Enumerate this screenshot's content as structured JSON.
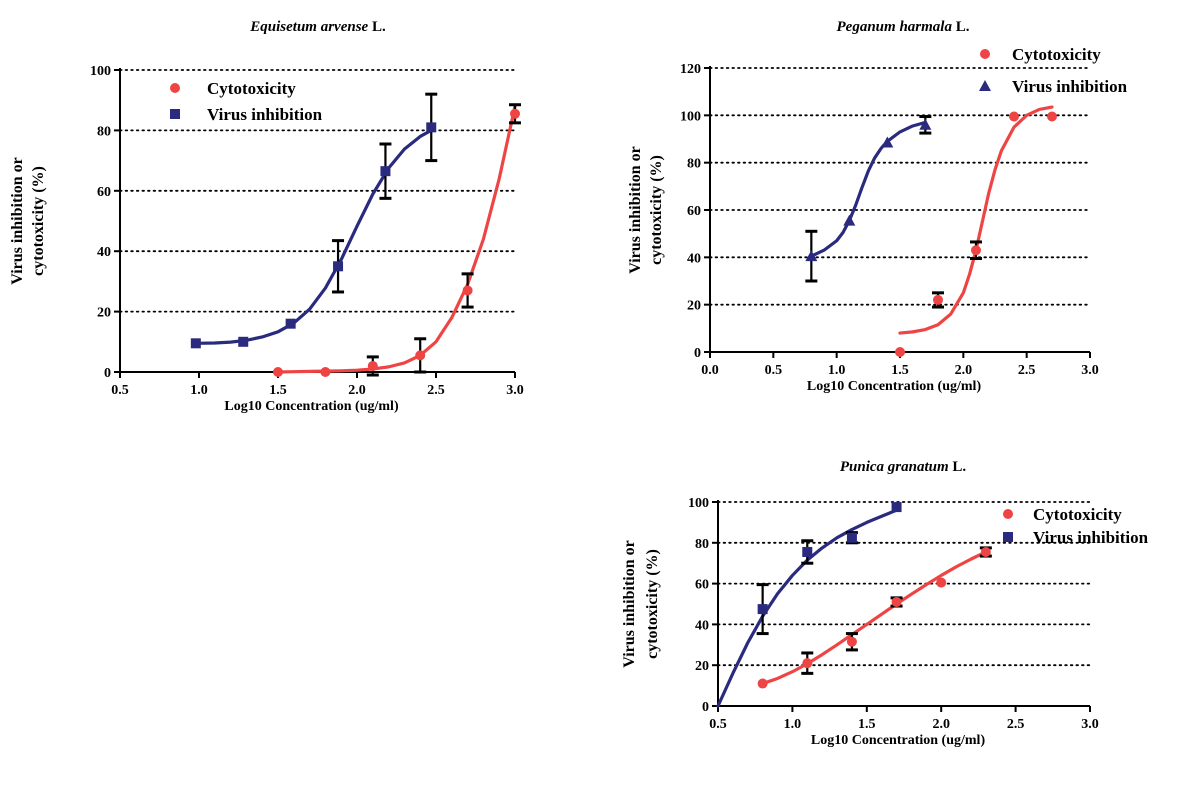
{
  "colors": {
    "cytotoxicity": "#ef4444",
    "virus_inhibition": "#2a2a7f",
    "axis": "#000000",
    "error_bar": "#000000"
  },
  "chart_data": [
    {
      "type": "scatter",
      "title_italic": "Equisetum arvense",
      "title_plain": " L.",
      "xlabel": "Log10 Concentration (ug/ml)",
      "ylabel_lines": [
        "Virus inhibition or",
        "cytotoxicity (%)"
      ],
      "xlim": [
        0.5,
        3.0
      ],
      "ylim": [
        0,
        100
      ],
      "xticks": [
        0.5,
        1.0,
        1.5,
        2.0,
        2.5,
        3.0
      ],
      "xticklabels": [
        "0.5",
        "1.0",
        "1.5",
        "2.0",
        "2.5",
        "3.0"
      ],
      "yticks": [
        0,
        20,
        40,
        60,
        80,
        100
      ],
      "yticklabels": [
        "0",
        "20",
        "40",
        "60",
        "80",
        "100"
      ],
      "grid": "horizontal dotted",
      "legend_position": "top-left",
      "series": [
        {
          "name": "Cytotoxicity",
          "marker": "circle",
          "color": "#ef4444",
          "x": [
            1.5,
            1.8,
            2.1,
            2.4,
            2.7,
            3.0
          ],
          "y": [
            0,
            0,
            2,
            5.5,
            27,
            85.5
          ],
          "err": [
            0,
            0,
            3,
            5.5,
            5.5,
            3
          ],
          "curve_x": [
            1.5,
            1.6,
            1.7,
            1.8,
            1.9,
            2.0,
            2.1,
            2.2,
            2.3,
            2.4,
            2.5,
            2.6,
            2.7,
            2.8,
            2.9,
            3.0
          ],
          "curve_y": [
            0,
            0.1,
            0.2,
            0.3,
            0.4,
            0.6,
            1,
            1.7,
            3,
            5.5,
            10,
            18,
            29,
            44,
            64,
            88
          ]
        },
        {
          "name": "Virus inhibition",
          "marker": "square",
          "color": "#2a2a7f",
          "x": [
            0.98,
            1.28,
            1.58,
            1.88,
            2.18,
            2.47
          ],
          "y": [
            9.5,
            10,
            16,
            35,
            66.5,
            81
          ],
          "err": [
            0,
            0,
            0,
            8.5,
            9,
            11
          ],
          "curve_x": [
            0.98,
            1.1,
            1.2,
            1.3,
            1.4,
            1.5,
            1.6,
            1.7,
            1.8,
            1.9,
            2.0,
            2.1,
            2.2,
            2.3,
            2.4,
            2.47
          ],
          "curve_y": [
            9.5,
            9.6,
            9.9,
            10.5,
            11.6,
            13.3,
            16.2,
            20.8,
            27.8,
            37.2,
            48.3,
            58.9,
            67.5,
            73.8,
            78,
            80
          ]
        }
      ]
    },
    {
      "type": "scatter",
      "title_italic": "Peganum harmala",
      "title_plain": " L.",
      "xlabel": "Log10 Concentration (ug/ml)",
      "ylabel_lines": [
        "Virus inhibition or",
        "cytotoxicity (%)"
      ],
      "xlim": [
        0.0,
        3.0
      ],
      "ylim": [
        0,
        120
      ],
      "xticks": [
        0.0,
        0.5,
        1.0,
        1.5,
        2.0,
        2.5,
        3.0
      ],
      "xticklabels": [
        "0.0",
        "0.5",
        "1.0",
        "1.5",
        "2.0",
        "2.5",
        "3.0"
      ],
      "yticks": [
        0,
        20,
        40,
        60,
        80,
        100,
        120
      ],
      "yticklabels": [
        "0",
        "20",
        "40",
        "60",
        "80",
        "100",
        "120"
      ],
      "grid": "horizontal dotted",
      "legend_position": "top-right",
      "series": [
        {
          "name": "Cytotoxicity",
          "marker": "circle",
          "color": "#ef4444",
          "x": [
            1.5,
            1.8,
            2.1,
            2.4,
            2.7
          ],
          "y": [
            0,
            22,
            43,
            99.5,
            99.5
          ],
          "err": [
            0,
            3,
            3.5,
            0,
            0
          ],
          "curve_x": [
            1.5,
            1.6,
            1.7,
            1.8,
            1.9,
            2.0,
            2.05,
            2.1,
            2.15,
            2.2,
            2.25,
            2.3,
            2.4,
            2.5,
            2.6,
            2.7
          ],
          "curve_y": [
            8,
            8.5,
            9.5,
            11.5,
            16,
            25,
            33,
            43,
            55,
            67,
            77,
            85,
            95,
            100,
            102.5,
            103.5
          ]
        },
        {
          "name": "Virus inhibition",
          "marker": "triangle",
          "color": "#2a2a7f",
          "x": [
            0.8,
            1.1,
            1.4,
            1.7
          ],
          "y": [
            40.5,
            55.5,
            88.5,
            96
          ],
          "err": [
            10.5,
            0,
            0,
            3.5
          ],
          "curve_x": [
            0.8,
            0.9,
            1.0,
            1.05,
            1.1,
            1.15,
            1.2,
            1.25,
            1.3,
            1.35,
            1.4,
            1.5,
            1.6,
            1.7
          ],
          "curve_y": [
            40.5,
            43,
            47,
            50.5,
            55.5,
            62,
            69.5,
            76.5,
            82,
            86,
            89,
            93,
            95.5,
            97
          ]
        }
      ]
    },
    {
      "type": "scatter",
      "title_italic": "Punica granatum",
      "title_plain": " L.",
      "xlabel": "Log10 Concentration (ug/ml)",
      "ylabel_lines": [
        "Virus inhibition or",
        "cytotoxicity (%)"
      ],
      "xlim": [
        0.5,
        3.0
      ],
      "ylim": [
        0,
        100
      ],
      "xticks": [
        0.5,
        1.0,
        1.5,
        2.0,
        2.5,
        3.0
      ],
      "xticklabels": [
        "0.5",
        "1.0",
        "1.5",
        "2.0",
        "2.5",
        "3.0"
      ],
      "yticks": [
        0,
        20,
        40,
        60,
        80,
        100
      ],
      "yticklabels": [
        "0",
        "20",
        "40",
        "60",
        "80",
        "100"
      ],
      "grid": "horizontal dotted",
      "legend_position": "top-right",
      "series": [
        {
          "name": "Cytotoxicity",
          "marker": "circle",
          "color": "#ef4444",
          "x": [
            0.8,
            1.1,
            1.4,
            1.7,
            2.0,
            2.3
          ],
          "y": [
            11,
            21,
            31.5,
            51,
            60.5,
            75.5
          ],
          "err": [
            0,
            5,
            4,
            2,
            0,
            2
          ],
          "curve_x": [
            0.8,
            0.9,
            1.0,
            1.1,
            1.2,
            1.3,
            1.4,
            1.5,
            1.6,
            1.7,
            1.8,
            1.9,
            2.0,
            2.1,
            2.2,
            2.3
          ],
          "curve_y": [
            11,
            13.5,
            16.8,
            20.7,
            25.2,
            30,
            35,
            40,
            45,
            50,
            54.8,
            59.5,
            64,
            68.2,
            72,
            75.5
          ]
        },
        {
          "name": "Virus inhibition",
          "marker": "square",
          "color": "#2a2a7f",
          "x": [
            0.8,
            1.1,
            1.4,
            1.7
          ],
          "y": [
            47.5,
            75.5,
            82.5,
            97.5
          ],
          "err": [
            12,
            5.5,
            2.5,
            0
          ],
          "curve_x": [
            0.5,
            0.6,
            0.7,
            0.8,
            0.9,
            1.0,
            1.1,
            1.2,
            1.3,
            1.4,
            1.5,
            1.6,
            1.7
          ],
          "curve_y": [
            0,
            16,
            31,
            44,
            55,
            64,
            71.5,
            77.5,
            82.5,
            86.5,
            90,
            93,
            96
          ]
        }
      ]
    }
  ]
}
